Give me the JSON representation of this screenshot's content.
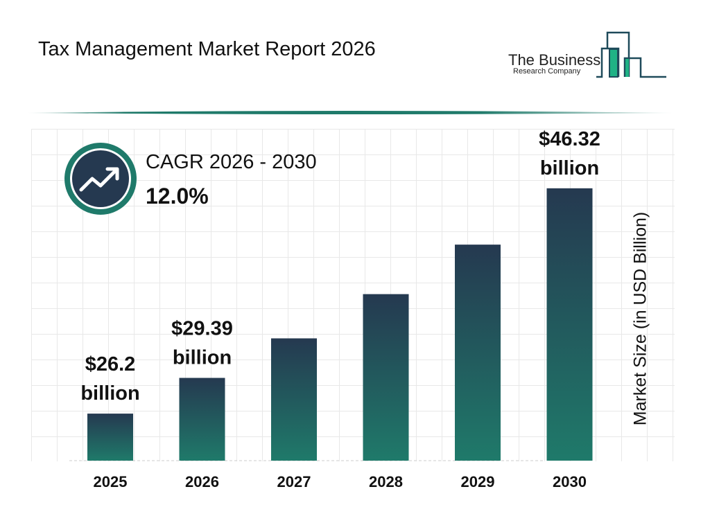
{
  "header": {
    "title": "Tax Management Market Report 2026"
  },
  "logo": {
    "line1": "The Business",
    "line2": "Research Company",
    "colors": {
      "dark": "#1e4a5a",
      "green": "#1fb285"
    }
  },
  "cagr": {
    "label": "CAGR 2026 - 2030",
    "value": "12.0%",
    "icon": "trending-up-icon"
  },
  "chart_data": {
    "type": "bar",
    "title": "",
    "xlabel": "",
    "ylabel": "Market Size (in USD Billion)",
    "categories": [
      "2025",
      "2026",
      "2027",
      "2028",
      "2029",
      "2030"
    ],
    "values": [
      26.2,
      29.39,
      32.92,
      36.87,
      41.29,
      46.32
    ],
    "data_labels": [
      "$26.2 billion",
      "$29.39 billion",
      "",
      "",
      "",
      "$46.32 billion"
    ],
    "ylim": [
      22,
      52
    ],
    "grid": true,
    "colors": {
      "bar_top": "#253950",
      "bar_bottom": "#1f7a6a"
    }
  }
}
